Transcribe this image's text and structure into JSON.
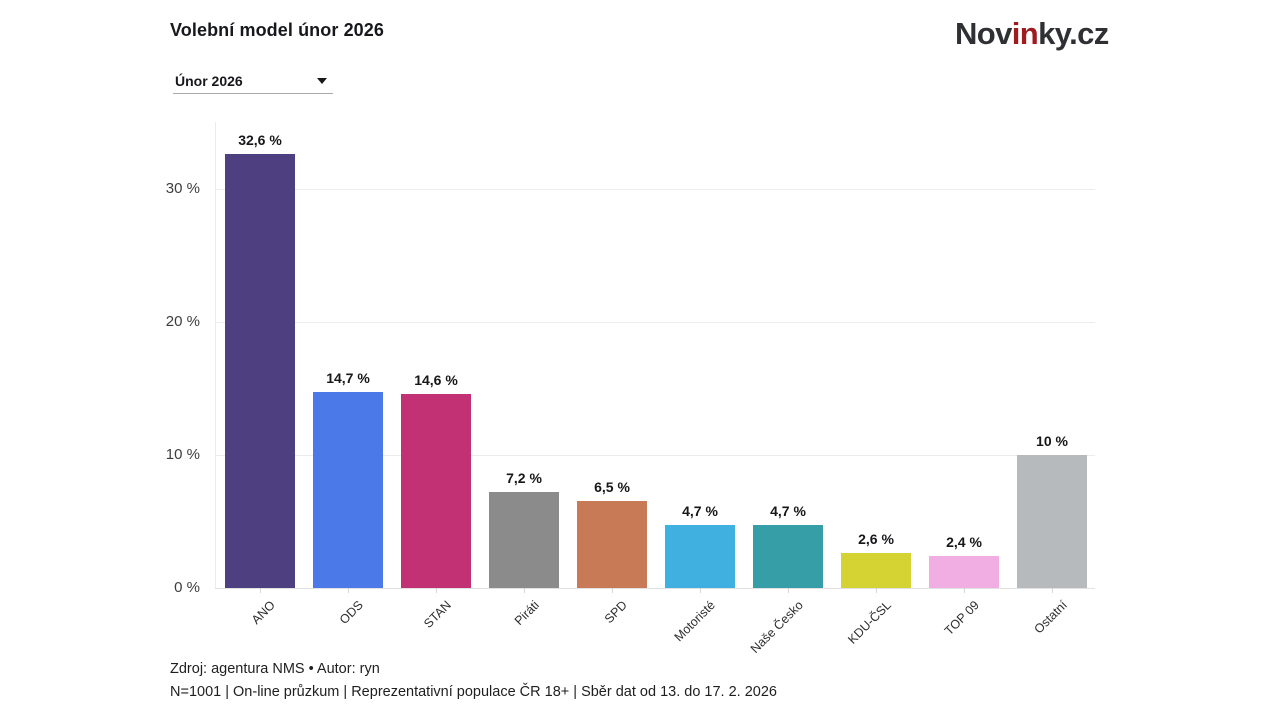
{
  "header": {
    "title": "Volební model únor 2026",
    "dropdown": {
      "value": "Únor 2026"
    },
    "logo": {
      "part1": "Nov",
      "part2": "in",
      "part3": "ky.cz",
      "accent_color": "#9e1c20",
      "text_color": "#2f3033"
    }
  },
  "chart_data": {
    "type": "bar",
    "title": "Volební model únor 2026",
    "categories": [
      "ANO",
      "ODS",
      "STAN",
      "Piráti",
      "SPD",
      "Motoristé",
      "Naše Česko",
      "KDU-ČSL",
      "TOP 09",
      "Ostatní"
    ],
    "values": [
      32.6,
      14.7,
      14.6,
      7.2,
      6.5,
      4.7,
      4.7,
      2.6,
      2.4,
      10
    ],
    "value_labels": [
      "32,6 %",
      "14,7 %",
      "14,6 %",
      "7,2 %",
      "6,5 %",
      "4,7 %",
      "4,7 %",
      "2,6 %",
      "2,4 %",
      "10 %"
    ],
    "bar_colors": [
      "#4e3f80",
      "#4b79e8",
      "#c23173",
      "#8b8b8b",
      "#c77a55",
      "#3fb0e0",
      "#359ea6",
      "#d4d333",
      "#f0aee2",
      "#b6babd"
    ],
    "xlabel": "",
    "ylabel": "",
    "ylim": [
      0,
      35
    ],
    "yticks": [
      0,
      10,
      20,
      30
    ],
    "ytick_labels": [
      "0 %",
      "10 %",
      "20 %",
      "30 %"
    ],
    "grid": true,
    "legend": false
  },
  "footer": {
    "line1": "Zdroj: agentura NMS • Autor: ryn",
    "line2": "N=1001 | On-line průzkum | Reprezentativní populace ČR 18+ | Sběr dat od 13. do 17. 2. 2026"
  }
}
